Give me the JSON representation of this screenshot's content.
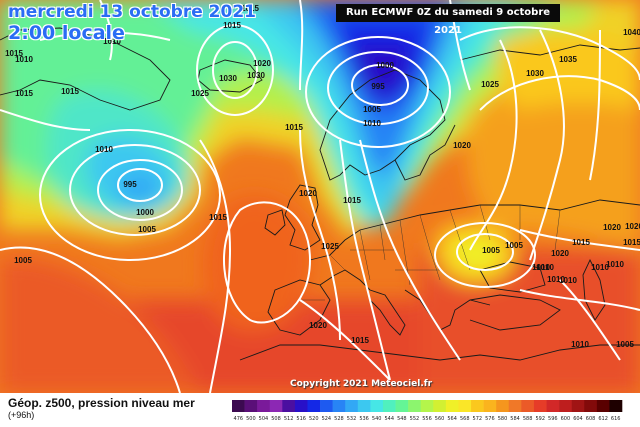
{
  "header": {
    "date": "mercredi 13 octobre 2021",
    "time": "2:00 locale",
    "run": "Run ECMWF 0Z du samedi 9 octobre 2021"
  },
  "copyright": "Copyright 2021 Meteociel.fr",
  "footer": {
    "title": "Géop. z500, pression niveau mer",
    "subtitle": "(+96h)"
  },
  "scale": {
    "labels": [
      "476",
      "500",
      "504",
      "508",
      "512",
      "516",
      "520",
      "524",
      "528",
      "532",
      "536",
      "540",
      "544",
      "548",
      "552",
      "556",
      "560",
      "564",
      "568",
      "572",
      "576",
      "580",
      "584",
      "588",
      "592",
      "596",
      "600",
      "604",
      "608",
      "612",
      "616"
    ],
    "colors": [
      "#3c0a50",
      "#5a0f78",
      "#7a1a9a",
      "#8c28b4",
      "#4b0fa0",
      "#2810c8",
      "#1428e6",
      "#1e5af0",
      "#2884f5",
      "#32a8f5",
      "#3cc8f0",
      "#46e6e6",
      "#50f0be",
      "#64f596",
      "#8cf56e",
      "#b4f54b",
      "#d2f032",
      "#f0f028",
      "#fae628",
      "#fac81e",
      "#fab41e",
      "#f5961e",
      "#f07828",
      "#eb5a28",
      "#e63c28",
      "#d22828",
      "#be1e1e",
      "#a01414",
      "#820a0a",
      "#5a0000",
      "#1e0000"
    ]
  },
  "pressure_labels": [
    {
      "text": "1015"
    },
    {
      "text": "1015"
    },
    {
      "text": "1010"
    },
    {
      "text": "1015"
    },
    {
      "text": "1025"
    },
    {
      "text": "1030"
    },
    {
      "text": "1020"
    },
    {
      "text": "1030"
    },
    {
      "text": "1015"
    },
    {
      "text": "1000"
    },
    {
      "text": "995"
    },
    {
      "text": "1005"
    },
    {
      "text": "1010"
    },
    {
      "text": "1010"
    },
    {
      "text": "1040"
    },
    {
      "text": "1035"
    },
    {
      "text": "1030"
    },
    {
      "text": "1025"
    },
    {
      "text": "1015"
    },
    {
      "text": "1010"
    },
    {
      "text": "995"
    },
    {
      "text": "1000"
    },
    {
      "text": "1005"
    },
    {
      "text": "1015"
    },
    {
      "text": "1005"
    },
    {
      "text": "1020"
    },
    {
      "text": "1015"
    },
    {
      "text": "1025"
    },
    {
      "text": "1020"
    },
    {
      "text": "1015"
    },
    {
      "text": "1005"
    },
    {
      "text": "1005"
    },
    {
      "text": "1015"
    },
    {
      "text": "1020"
    },
    {
      "text": "1010"
    },
    {
      "text": "1010"
    },
    {
      "text": "1020"
    },
    {
      "text": "1020"
    },
    {
      "text": "1015"
    },
    {
      "text": "1010"
    },
    {
      "text": "1010"
    },
    {
      "text": "1010"
    },
    {
      "text": "1005"
    },
    {
      "text": "1010"
    },
    {
      "text": "1015"
    },
    {
      "text": "1020"
    },
    {
      "text": "1010"
    }
  ]
}
